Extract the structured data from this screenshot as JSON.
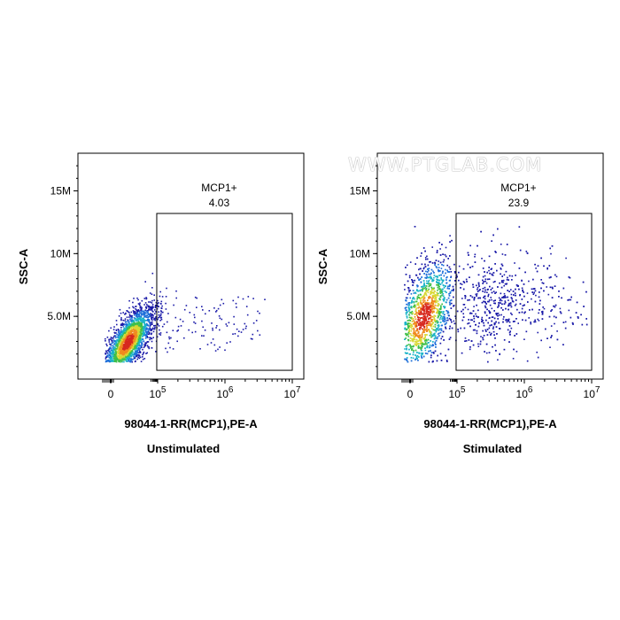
{
  "watermark": "WWW.PTGLAB.COM",
  "chart_data": [
    {
      "type": "scatter",
      "title": "Unstimulated",
      "xlabel": "98044-1-RR(MCP1),PE-A",
      "ylabel": "SSC-A",
      "x_scale": "biexponential",
      "x_ticks": [
        "0",
        "10^5",
        "10^6",
        "10^7"
      ],
      "y_ticks": [
        "5.0M",
        "10M",
        "15M"
      ],
      "ylim": [
        0,
        18000000
      ],
      "gate": {
        "label": "MCP1+",
        "percent": "4.03",
        "x_range": [
          80000,
          10000000
        ],
        "y_range": [
          700000,
          13200000
        ]
      },
      "population": {
        "center_x": 25000,
        "center_y": 3000000,
        "main_events_description": "dense cluster below 1e5",
        "tail_events_in_gate": "sparse"
      },
      "density_colors": [
        "#1a1aa8",
        "#1e6fd9",
        "#19b3c7",
        "#3fbf4a",
        "#d8d832",
        "#f08a1e",
        "#d7281e"
      ]
    },
    {
      "type": "scatter",
      "title": "Stimulated",
      "xlabel": "98044-1-RR(MCP1),PE-A",
      "ylabel": "SSC-A",
      "x_scale": "biexponential",
      "x_ticks": [
        "0",
        "10^5",
        "10^6",
        "10^7"
      ],
      "y_ticks": [
        "5.0M",
        "10M",
        "15M"
      ],
      "ylim": [
        0,
        18000000
      ],
      "gate": {
        "label": "MCP1+",
        "percent": "23.9",
        "x_range": [
          80000,
          10000000
        ],
        "y_range": [
          700000,
          13200000
        ]
      },
      "population": {
        "center_x": 20000,
        "center_y": 5000000,
        "main_events_description": "broad cluster extending into gate",
        "tail_events_in_gate": "dense"
      },
      "density_colors": [
        "#1a1aa8",
        "#1e6fd9",
        "#19b3c7",
        "#3fbf4a",
        "#d8d832",
        "#f08a1e",
        "#d7281e"
      ]
    }
  ]
}
